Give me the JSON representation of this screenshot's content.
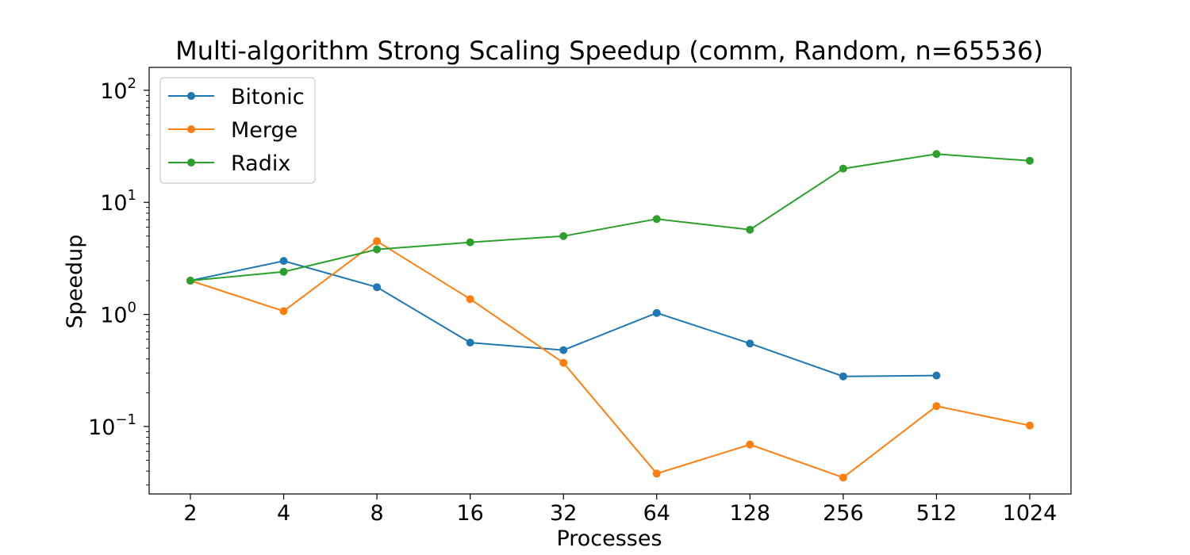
{
  "chart_data": {
    "type": "line",
    "title": "Multi-algorithm Strong Scaling Speedup (comm, Random, n=65536)",
    "xlabel": "Processes",
    "ylabel": "Speedup",
    "x_scale": "log2",
    "y_scale": "log",
    "categories": [
      "2",
      "4",
      "8",
      "16",
      "32",
      "64",
      "128",
      "256",
      "512",
      "1024"
    ],
    "x": [
      2,
      4,
      8,
      16,
      32,
      64,
      128,
      256,
      512,
      1024
    ],
    "ylim": [
      0.025,
      160
    ],
    "y_ticks": [
      {
        "base": "10",
        "exp": "2",
        "value": 100
      },
      {
        "base": "10",
        "exp": "1",
        "value": 10
      },
      {
        "base": "10",
        "exp": "0",
        "value": 1
      },
      {
        "base": "10",
        "exp": "−1",
        "value": 0.1
      }
    ],
    "grid": false,
    "legend_position": "top-left",
    "series": [
      {
        "name": "Bitonic",
        "color": "#1f77b4",
        "values": [
          2.0,
          3.0,
          1.75,
          0.56,
          0.48,
          1.03,
          0.55,
          0.28,
          0.285,
          null
        ]
      },
      {
        "name": "Merge",
        "color": "#ff7f0e",
        "values": [
          2.0,
          1.07,
          4.5,
          1.37,
          0.37,
          0.038,
          0.069,
          0.035,
          0.152,
          0.102
        ]
      },
      {
        "name": "Radix",
        "color": "#2ca02c",
        "values": [
          2.0,
          2.4,
          3.8,
          4.4,
          5.0,
          7.1,
          5.7,
          20.0,
          27.0,
          23.5
        ]
      }
    ]
  }
}
